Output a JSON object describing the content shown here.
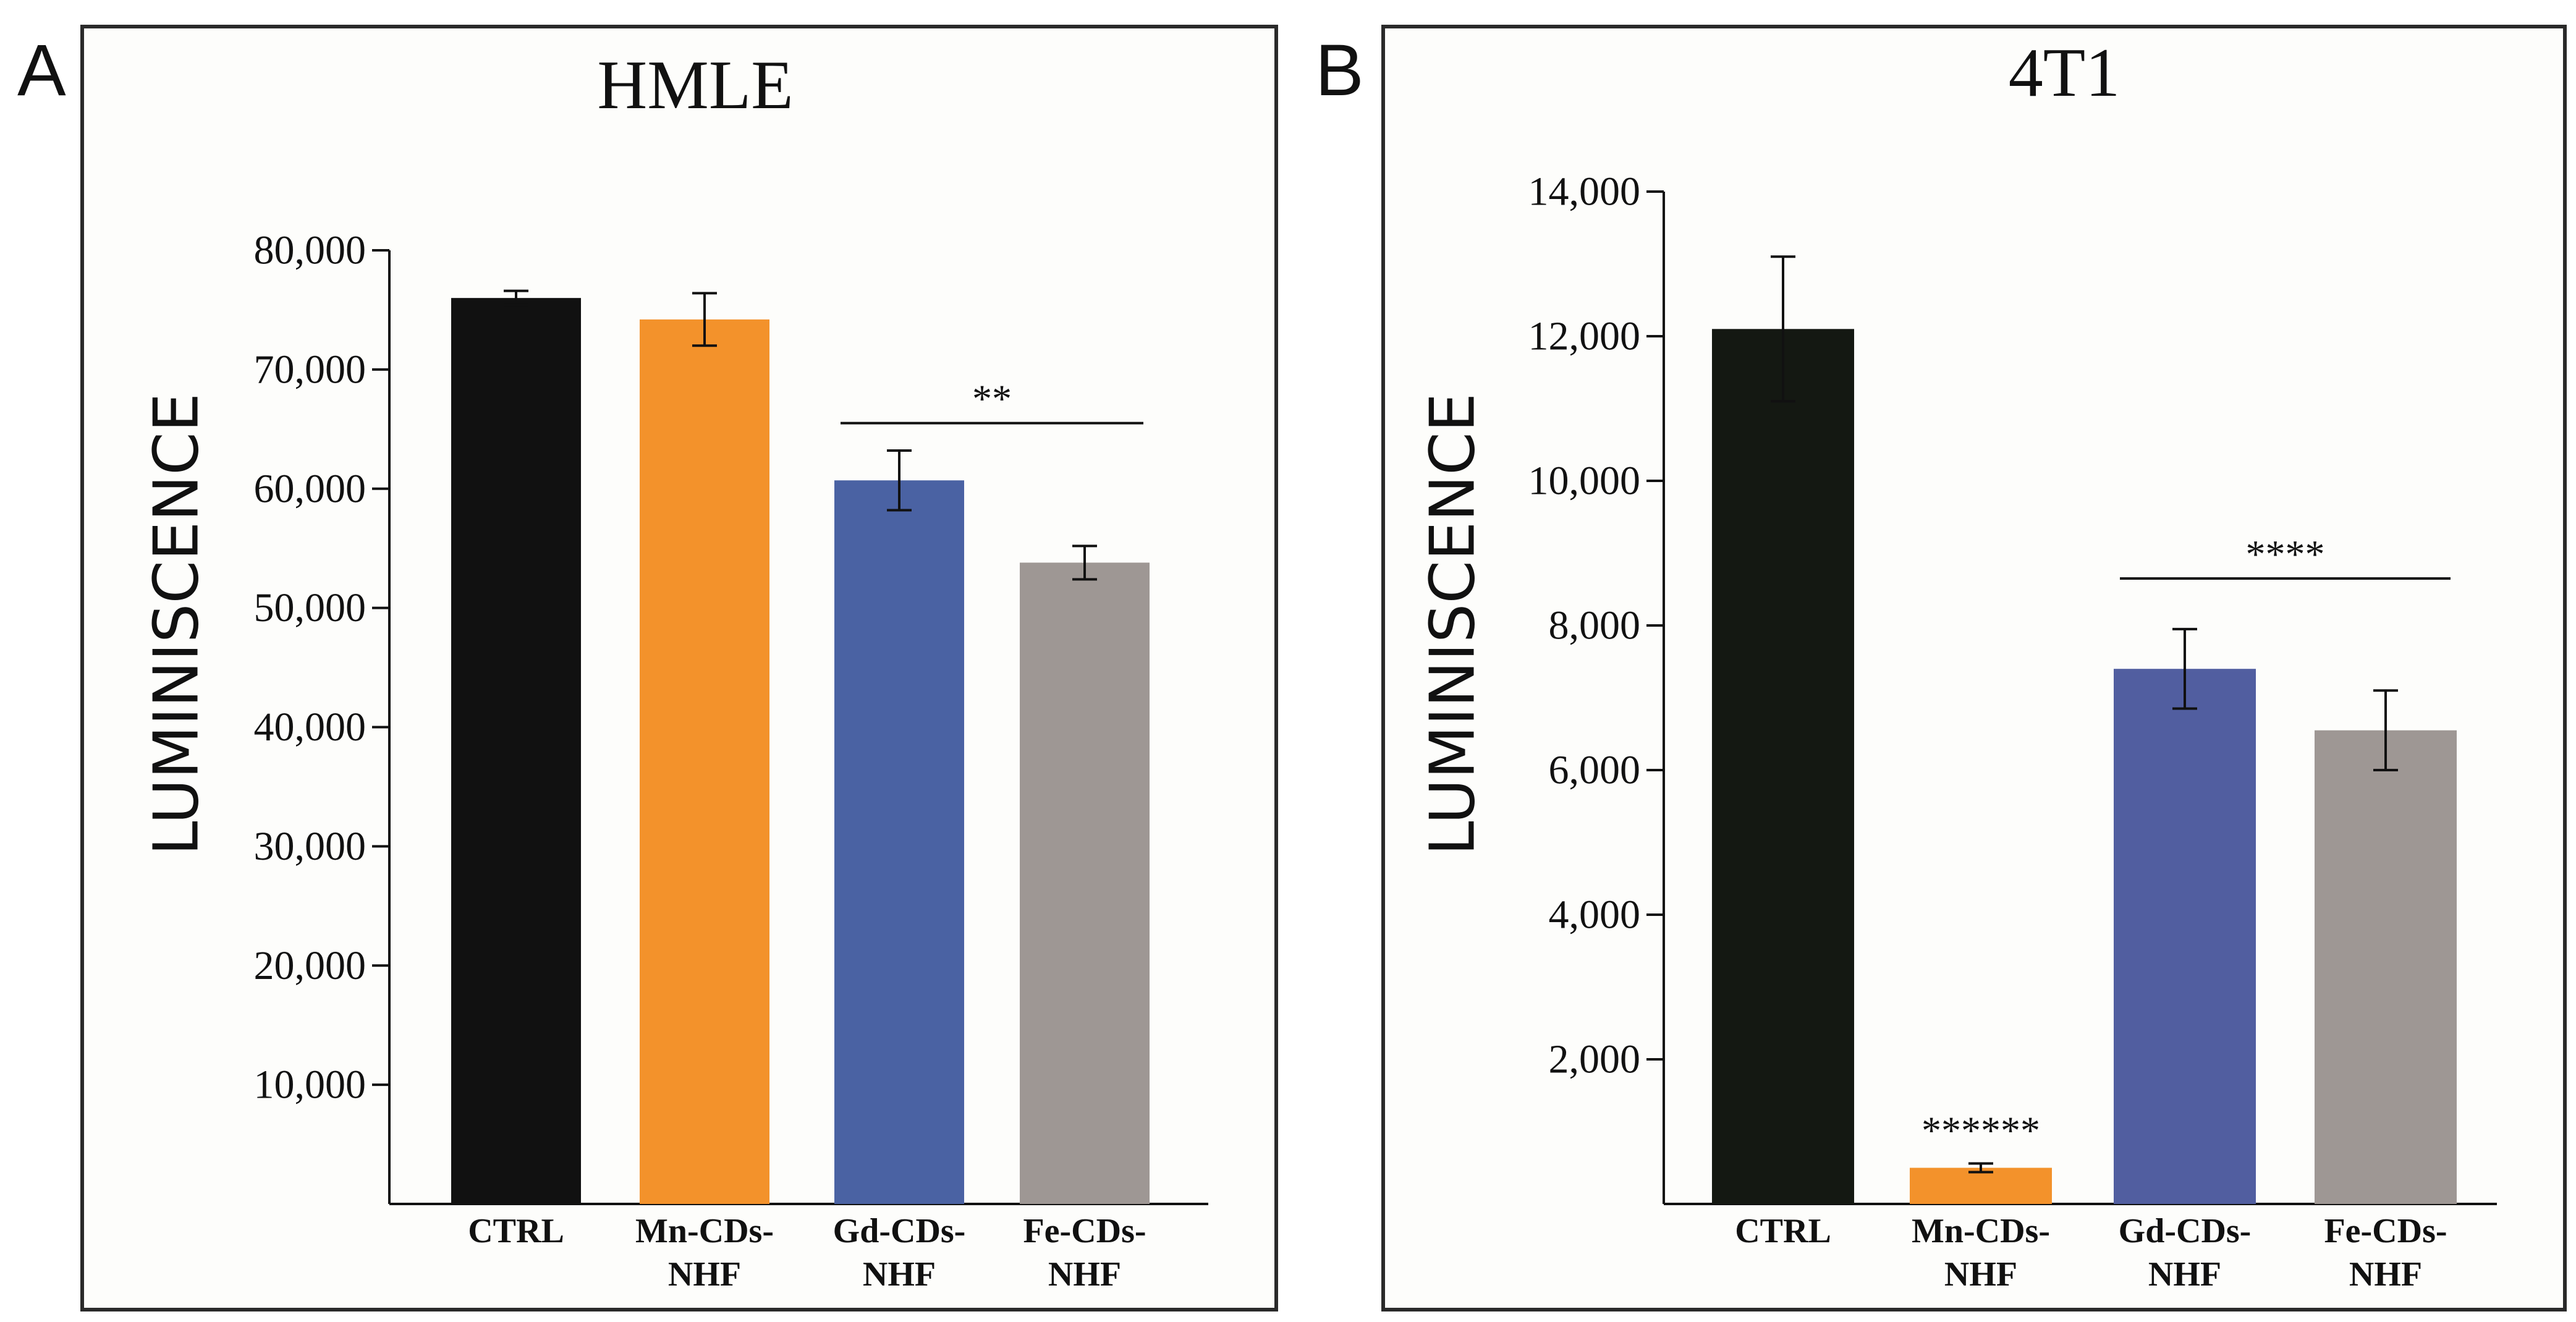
{
  "chart_data": [
    {
      "panel": "A",
      "type": "bar",
      "title": "HMLE",
      "ylabel": "LUMINISCENCE",
      "xlabel": "",
      "ylim": [
        0,
        80000
      ],
      "yticks": [
        10000,
        20000,
        30000,
        40000,
        50000,
        60000,
        70000,
        80000
      ],
      "ytick_labels": [
        "10,000",
        "20,000",
        "30,000",
        "40,000",
        "50,000",
        "60,000",
        "70,000",
        "80,000"
      ],
      "categories": [
        [
          "CTRL"
        ],
        [
          "Mn-CDs-",
          "NHF"
        ],
        [
          "Gd-CDs-",
          "NHF"
        ],
        [
          "Fe-CDs-",
          "NHF"
        ]
      ],
      "values": [
        76000,
        74200,
        60700,
        53800
      ],
      "errors": [
        600,
        2200,
        2500,
        1400
      ],
      "colors": [
        "#111111",
        "#f3922b",
        "#4a62a3",
        "#9e9794"
      ],
      "annotations": [
        {
          "text": "**",
          "type": "bracket",
          "from": 2,
          "to": 3,
          "y": 65500
        }
      ]
    },
    {
      "panel": "B",
      "type": "bar",
      "title": "4T1",
      "ylabel": "LUMINISCENCE",
      "xlabel": "",
      "ylim": [
        0,
        14000
      ],
      "yticks": [
        2000,
        4000,
        6000,
        8000,
        10000,
        12000,
        14000
      ],
      "ytick_labels": [
        "2,000",
        "4,000",
        "6,000",
        "8,000",
        "10,000",
        "12,000",
        "14,000"
      ],
      "categories": [
        [
          "CTRL"
        ],
        [
          "Mn-CDs-",
          "NHF"
        ],
        [
          "Gd-CDs-",
          "NHF"
        ],
        [
          "Fe-CDs-",
          "NHF"
        ]
      ],
      "values": [
        12100,
        500,
        7400,
        6550
      ],
      "errors": [
        1000,
        60,
        550,
        550
      ],
      "colors": [
        "#141812",
        "#f3922b",
        "#515ea0",
        "#9e9794"
      ],
      "annotations": [
        {
          "text": "******",
          "type": "label",
          "bar": 1,
          "y": 750
        },
        {
          "text": "****",
          "type": "bracket",
          "from": 2,
          "to": 3,
          "y": 8650
        }
      ]
    }
  ]
}
